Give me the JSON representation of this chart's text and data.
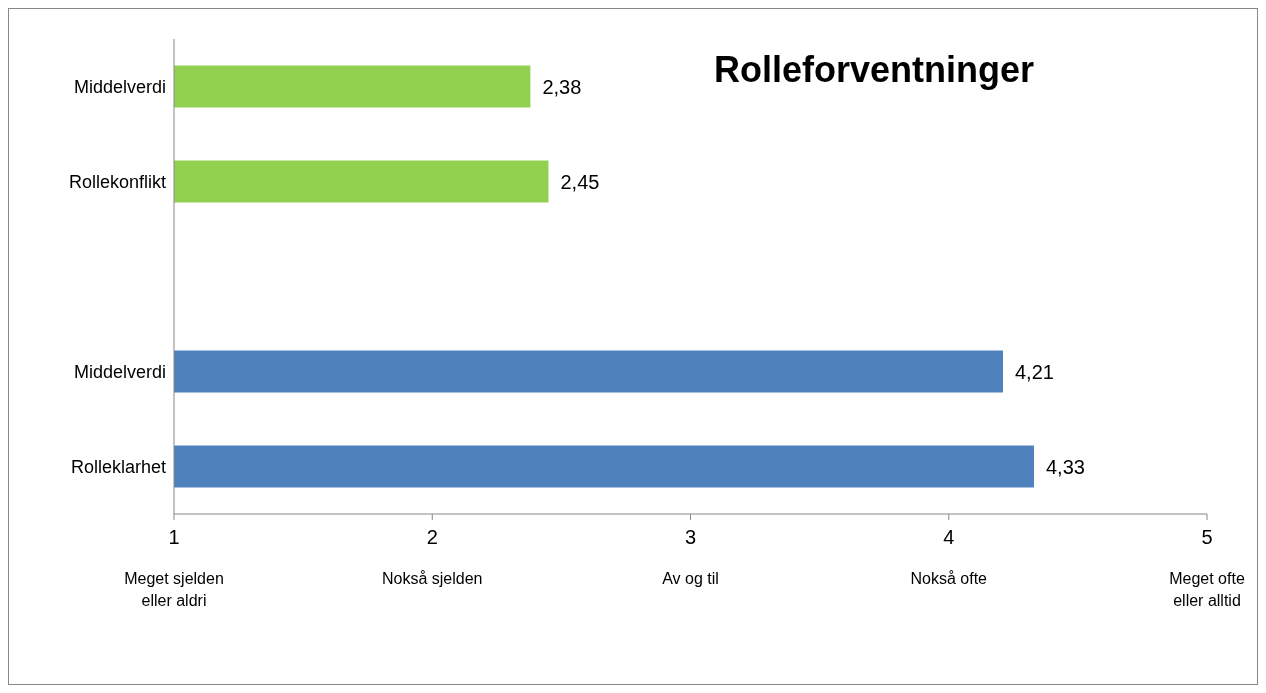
{
  "chart_data": {
    "type": "bar",
    "orientation": "horizontal",
    "title": "Rolleforventninger",
    "categories": [
      "Middelverdi",
      "Rollekonflikt",
      null,
      "Middelverdi",
      "Rolleklarhet"
    ],
    "values": [
      2.38,
      2.45,
      null,
      4.21,
      4.33
    ],
    "colors": [
      "#92d050",
      "#92d050",
      null,
      "#4f81bd",
      "#4f81bd"
    ],
    "value_labels": [
      "2,38",
      "2,45",
      null,
      "4,21",
      "4,33"
    ],
    "xlim": [
      1,
      5
    ],
    "xticks": [
      1,
      2,
      3,
      4,
      5
    ],
    "annotations": [
      "Meget sjelden eller aldri",
      "Nokså sjelden",
      "Av og til",
      "Nokså ofte",
      "Meget ofte eller alltid"
    ],
    "grid": false
  }
}
